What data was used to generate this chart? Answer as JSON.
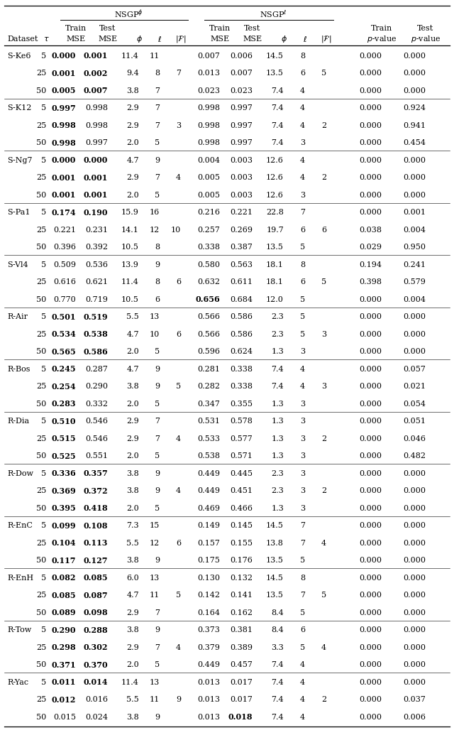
{
  "rows": [
    [
      "S-Ke6",
      "5",
      "0.000",
      "0.001",
      "11.4",
      "11",
      "",
      "0.007",
      "0.006",
      "14.5",
      "8",
      "",
      "0.000",
      "0.000",
      true,
      true,
      false,
      false
    ],
    [
      "",
      "25",
      "0.001",
      "0.002",
      "9.4",
      "8",
      "7",
      "0.013",
      "0.007",
      "13.5",
      "6",
      "5",
      "0.000",
      "0.000",
      true,
      true,
      false,
      false
    ],
    [
      "",
      "50",
      "0.005",
      "0.007",
      "3.8",
      "7",
      "",
      "0.023",
      "0.023",
      "7.4",
      "4",
      "",
      "0.000",
      "0.000",
      true,
      true,
      false,
      false
    ],
    [
      "S-K12",
      "5",
      "0.997",
      "0.998",
      "2.9",
      "7",
      "",
      "0.998",
      "0.997",
      "7.4",
      "4",
      "",
      "0.000",
      "0.924",
      true,
      false,
      false,
      false
    ],
    [
      "",
      "25",
      "0.998",
      "0.998",
      "2.9",
      "7",
      "3",
      "0.998",
      "0.997",
      "7.4",
      "4",
      "2",
      "0.000",
      "0.941",
      true,
      false,
      false,
      false
    ],
    [
      "",
      "50",
      "0.998",
      "0.997",
      "2.0",
      "5",
      "",
      "0.998",
      "0.997",
      "7.4",
      "3",
      "",
      "0.000",
      "0.454",
      true,
      false,
      false,
      false
    ],
    [
      "S-Ng7",
      "5",
      "0.000",
      "0.000",
      "4.7",
      "9",
      "",
      "0.004",
      "0.003",
      "12.6",
      "4",
      "",
      "0.000",
      "0.000",
      true,
      true,
      false,
      false
    ],
    [
      "",
      "25",
      "0.001",
      "0.001",
      "2.9",
      "7",
      "4",
      "0.005",
      "0.003",
      "12.6",
      "4",
      "2",
      "0.000",
      "0.000",
      true,
      true,
      false,
      false
    ],
    [
      "",
      "50",
      "0.001",
      "0.001",
      "2.0",
      "5",
      "",
      "0.005",
      "0.003",
      "12.6",
      "3",
      "",
      "0.000",
      "0.000",
      true,
      true,
      false,
      false
    ],
    [
      "S-Pa1",
      "5",
      "0.174",
      "0.190",
      "15.9",
      "16",
      "",
      "0.216",
      "0.221",
      "22.8",
      "7",
      "",
      "0.000",
      "0.001",
      true,
      true,
      false,
      false
    ],
    [
      "",
      "25",
      "0.221",
      "0.231",
      "14.1",
      "12",
      "10",
      "0.257",
      "0.269",
      "19.7",
      "6",
      "6",
      "0.038",
      "0.004",
      false,
      false,
      false,
      false
    ],
    [
      "",
      "50",
      "0.396",
      "0.392",
      "10.5",
      "8",
      "",
      "0.338",
      "0.387",
      "13.5",
      "5",
      "",
      "0.029",
      "0.950",
      false,
      false,
      false,
      false
    ],
    [
      "S-Vl4",
      "5",
      "0.509",
      "0.536",
      "13.9",
      "9",
      "",
      "0.580",
      "0.563",
      "18.1",
      "8",
      "",
      "0.194",
      "0.241",
      false,
      false,
      false,
      false
    ],
    [
      "",
      "25",
      "0.616",
      "0.621",
      "11.4",
      "8",
      "6",
      "0.632",
      "0.611",
      "18.1",
      "6",
      "5",
      "0.398",
      "0.579",
      false,
      false,
      false,
      false
    ],
    [
      "",
      "50",
      "0.770",
      "0.719",
      "10.5",
      "6",
      "",
      "0.656",
      "0.684",
      "12.0",
      "5",
      "",
      "0.000",
      "0.004",
      false,
      false,
      true,
      false
    ],
    [
      "R-Air",
      "5",
      "0.501",
      "0.519",
      "5.5",
      "13",
      "",
      "0.566",
      "0.586",
      "2.3",
      "5",
      "",
      "0.000",
      "0.000",
      true,
      true,
      false,
      false
    ],
    [
      "",
      "25",
      "0.534",
      "0.538",
      "4.7",
      "10",
      "6",
      "0.566",
      "0.586",
      "2.3",
      "5",
      "3",
      "0.000",
      "0.000",
      true,
      true,
      false,
      false
    ],
    [
      "",
      "50",
      "0.565",
      "0.586",
      "2.0",
      "5",
      "",
      "0.596",
      "0.624",
      "1.3",
      "3",
      "",
      "0.000",
      "0.000",
      true,
      true,
      false,
      false
    ],
    [
      "R-Bos",
      "5",
      "0.245",
      "0.287",
      "4.7",
      "9",
      "",
      "0.281",
      "0.338",
      "7.4",
      "4",
      "",
      "0.000",
      "0.057",
      true,
      false,
      false,
      false
    ],
    [
      "",
      "25",
      "0.254",
      "0.290",
      "3.8",
      "9",
      "5",
      "0.282",
      "0.338",
      "7.4",
      "4",
      "3",
      "0.000",
      "0.021",
      true,
      false,
      false,
      false
    ],
    [
      "",
      "50",
      "0.283",
      "0.332",
      "2.0",
      "5",
      "",
      "0.347",
      "0.355",
      "1.3",
      "3",
      "",
      "0.000",
      "0.054",
      true,
      false,
      false,
      false
    ],
    [
      "R-Dia",
      "5",
      "0.510",
      "0.546",
      "2.9",
      "7",
      "",
      "0.531",
      "0.578",
      "1.3",
      "3",
      "",
      "0.000",
      "0.051",
      true,
      false,
      false,
      false
    ],
    [
      "",
      "25",
      "0.515",
      "0.546",
      "2.9",
      "7",
      "4",
      "0.533",
      "0.577",
      "1.3",
      "3",
      "2",
      "0.000",
      "0.046",
      true,
      false,
      false,
      false
    ],
    [
      "",
      "50",
      "0.525",
      "0.551",
      "2.0",
      "5",
      "",
      "0.538",
      "0.571",
      "1.3",
      "3",
      "",
      "0.000",
      "0.482",
      true,
      false,
      false,
      false
    ],
    [
      "R-Dow",
      "5",
      "0.336",
      "0.357",
      "3.8",
      "9",
      "",
      "0.449",
      "0.445",
      "2.3",
      "3",
      "",
      "0.000",
      "0.000",
      true,
      true,
      false,
      false
    ],
    [
      "",
      "25",
      "0.369",
      "0.372",
      "3.8",
      "9",
      "4",
      "0.449",
      "0.451",
      "2.3",
      "3",
      "2",
      "0.000",
      "0.000",
      true,
      true,
      false,
      false
    ],
    [
      "",
      "50",
      "0.395",
      "0.418",
      "2.0",
      "5",
      "",
      "0.469",
      "0.466",
      "1.3",
      "3",
      "",
      "0.000",
      "0.000",
      true,
      true,
      false,
      false
    ],
    [
      "R-EnC",
      "5",
      "0.099",
      "0.108",
      "7.3",
      "15",
      "",
      "0.149",
      "0.145",
      "14.5",
      "7",
      "",
      "0.000",
      "0.000",
      true,
      true,
      false,
      false
    ],
    [
      "",
      "25",
      "0.104",
      "0.113",
      "5.5",
      "12",
      "6",
      "0.157",
      "0.155",
      "13.8",
      "7",
      "4",
      "0.000",
      "0.000",
      true,
      true,
      false,
      false
    ],
    [
      "",
      "50",
      "0.117",
      "0.127",
      "3.8",
      "9",
      "",
      "0.175",
      "0.176",
      "13.5",
      "5",
      "",
      "0.000",
      "0.000",
      true,
      true,
      false,
      false
    ],
    [
      "R-EnH",
      "5",
      "0.082",
      "0.085",
      "6.0",
      "13",
      "",
      "0.130",
      "0.132",
      "14.5",
      "8",
      "",
      "0.000",
      "0.000",
      true,
      true,
      false,
      false
    ],
    [
      "",
      "25",
      "0.085",
      "0.087",
      "4.7",
      "11",
      "5",
      "0.142",
      "0.141",
      "13.5",
      "7",
      "5",
      "0.000",
      "0.000",
      true,
      true,
      false,
      false
    ],
    [
      "",
      "50",
      "0.089",
      "0.098",
      "2.9",
      "7",
      "",
      "0.164",
      "0.162",
      "8.4",
      "5",
      "",
      "0.000",
      "0.000",
      true,
      true,
      false,
      false
    ],
    [
      "R-Tow",
      "5",
      "0.290",
      "0.288",
      "3.8",
      "9",
      "",
      "0.373",
      "0.381",
      "8.4",
      "6",
      "",
      "0.000",
      "0.000",
      true,
      true,
      false,
      false
    ],
    [
      "",
      "25",
      "0.298",
      "0.302",
      "2.9",
      "7",
      "4",
      "0.379",
      "0.389",
      "3.3",
      "5",
      "4",
      "0.000",
      "0.000",
      true,
      true,
      false,
      false
    ],
    [
      "",
      "50",
      "0.371",
      "0.370",
      "2.0",
      "5",
      "",
      "0.449",
      "0.457",
      "7.4",
      "4",
      "",
      "0.000",
      "0.000",
      true,
      true,
      false,
      false
    ],
    [
      "R-Yac",
      "5",
      "0.011",
      "0.014",
      "11.4",
      "13",
      "",
      "0.013",
      "0.017",
      "7.4",
      "4",
      "",
      "0.000",
      "0.000",
      true,
      true,
      false,
      false
    ],
    [
      "",
      "25",
      "0.012",
      "0.016",
      "5.5",
      "11",
      "9",
      "0.013",
      "0.017",
      "7.4",
      "4",
      "2",
      "0.000",
      "0.037",
      true,
      false,
      false,
      false
    ],
    [
      "",
      "50",
      "0.015",
      "0.024",
      "3.8",
      "9",
      "",
      "0.013",
      "0.018",
      "7.4",
      "4",
      "",
      "0.000",
      "0.006",
      false,
      false,
      false,
      true
    ]
  ],
  "bold_phi_train": [
    true,
    true,
    true,
    true,
    true,
    true,
    true,
    true,
    true,
    true,
    false,
    false,
    false,
    false,
    false,
    true,
    true,
    true,
    true,
    true,
    true,
    true,
    true,
    true,
    true,
    true,
    true,
    true,
    true,
    true,
    true,
    true,
    true,
    true,
    true,
    true,
    true,
    true,
    false
  ],
  "bold_phi_test": [
    true,
    true,
    true,
    false,
    false,
    false,
    true,
    true,
    true,
    true,
    false,
    false,
    false,
    false,
    false,
    true,
    true,
    true,
    false,
    false,
    false,
    false,
    false,
    false,
    true,
    true,
    true,
    true,
    true,
    true,
    true,
    true,
    true,
    true,
    true,
    true,
    true,
    false,
    false
  ],
  "bold_ell_train": [
    false,
    false,
    false,
    false,
    false,
    false,
    false,
    false,
    false,
    false,
    false,
    false,
    false,
    false,
    true,
    false,
    false,
    false,
    false,
    false,
    false,
    false,
    false,
    false,
    false,
    false,
    false,
    false,
    false,
    false,
    false,
    false,
    false,
    false,
    false,
    false,
    false,
    false,
    false
  ],
  "bold_ell_test": [
    false,
    false,
    false,
    false,
    false,
    false,
    false,
    false,
    false,
    false,
    false,
    false,
    false,
    false,
    false,
    false,
    false,
    false,
    false,
    false,
    false,
    false,
    false,
    false,
    false,
    false,
    false,
    false,
    false,
    false,
    false,
    false,
    false,
    false,
    false,
    false,
    false,
    false,
    true
  ],
  "bold_pval_train": [
    false,
    false,
    false,
    false,
    false,
    false,
    false,
    false,
    false,
    false,
    false,
    false,
    false,
    false,
    false,
    false,
    false,
    false,
    false,
    false,
    false,
    false,
    false,
    false,
    false,
    false,
    false,
    false,
    false,
    false,
    false,
    false,
    false,
    false,
    false,
    false,
    false,
    false,
    false
  ],
  "bold_pval_test": [
    false,
    false,
    false,
    false,
    false,
    false,
    false,
    false,
    false,
    false,
    false,
    false,
    false,
    false,
    false,
    false,
    false,
    false,
    false,
    false,
    false,
    false,
    false,
    false,
    false,
    false,
    false,
    false,
    false,
    false,
    false,
    false,
    false,
    false,
    false,
    false,
    false,
    false,
    false
  ],
  "group_starts": [
    0,
    3,
    6,
    9,
    12,
    15,
    18,
    21,
    24,
    27,
    30,
    33,
    36
  ],
  "figsize": [
    6.4,
    10.49
  ],
  "dpi": 100
}
